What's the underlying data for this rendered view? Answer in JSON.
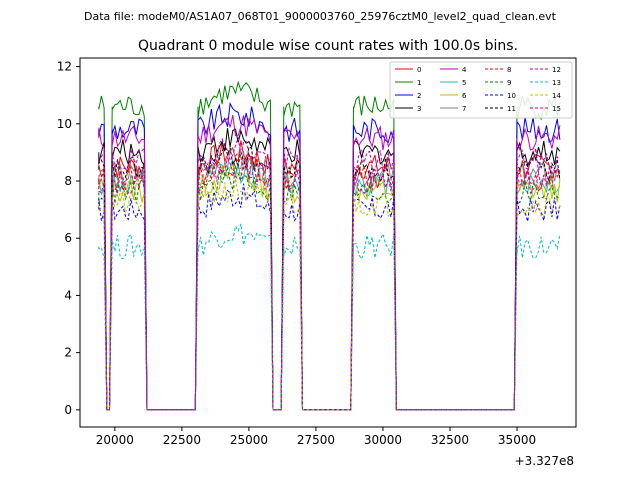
{
  "header": {
    "file_label": "Data file: modeM0/AS1A07_068T01_9000003760_25976cztM0_level2_quad_clean.evt"
  },
  "chart_data": {
    "type": "line",
    "title": "Quadrant 0 module wise count rates with 100.0s bins.",
    "xlabel": "",
    "ylabel": "",
    "x_offset_label": "+3.327e8",
    "xlim": [
      18700,
      37200
    ],
    "ylim": [
      -0.6,
      12.3
    ],
    "x_ticks": [
      {
        "value": 20000,
        "label": "20000"
      },
      {
        "value": 22500,
        "label": "22500"
      },
      {
        "value": 25000,
        "label": "25000"
      },
      {
        "value": 27500,
        "label": "27500"
      },
      {
        "value": 30000,
        "label": "30000"
      },
      {
        "value": 32500,
        "label": "32500"
      },
      {
        "value": 35000,
        "label": "35000"
      }
    ],
    "y_ticks": [
      {
        "value": 0,
        "label": "0"
      },
      {
        "value": 2,
        "label": "2"
      },
      {
        "value": 4,
        "label": "4"
      },
      {
        "value": 6,
        "label": "6"
      },
      {
        "value": 8,
        "label": "8"
      },
      {
        "value": 10,
        "label": "10"
      },
      {
        "value": 12,
        "label": "12"
      }
    ],
    "legend_position": "top-right",
    "active_intervals": [
      [
        19400,
        19600
      ],
      [
        19900,
        21100
      ],
      [
        23100,
        25800
      ],
      [
        26300,
        26900
      ],
      [
        28900,
        30400
      ],
      [
        35000,
        36600
      ]
    ],
    "series": [
      {
        "name": "0",
        "color": "#ff0000",
        "dash": "solid",
        "level": 8.5
      },
      {
        "name": "1",
        "color": "#008000",
        "dash": "solid",
        "level": 10.6
      },
      {
        "name": "2",
        "color": "#0000ff",
        "dash": "solid",
        "level": 9.8
      },
      {
        "name": "3",
        "color": "#000000",
        "dash": "solid",
        "level": 9.0
      },
      {
        "name": "4",
        "color": "#bf00bf",
        "dash": "solid",
        "level": 9.5
      },
      {
        "name": "5",
        "color": "#1fbfa0",
        "dash": "solid",
        "level": 7.9
      },
      {
        "name": "6",
        "color": "#bfbf00",
        "dash": "solid",
        "level": 7.7
      },
      {
        "name": "7",
        "color": "#808080",
        "dash": "solid",
        "level": 8.2
      },
      {
        "name": "8",
        "color": "#ff0000",
        "dash": "dashed",
        "level": 8.1
      },
      {
        "name": "9",
        "color": "#008000",
        "dash": "dashed",
        "level": 7.6
      },
      {
        "name": "10",
        "color": "#0000ff",
        "dash": "dashed",
        "level": 7.0
      },
      {
        "name": "11",
        "color": "#000000",
        "dash": "dashed",
        "level": 8.4
      },
      {
        "name": "12",
        "color": "#bf00bf",
        "dash": "dashed",
        "level": 8.7
      },
      {
        "name": "13",
        "color": "#00bfbf",
        "dash": "dashed",
        "level": 5.7
      },
      {
        "name": "14",
        "color": "#bfbf00",
        "dash": "dashed",
        "level": 7.2
      },
      {
        "name": "15",
        "color": "#bf00bf",
        "dash": "dashed",
        "level": 8.0
      }
    ]
  }
}
